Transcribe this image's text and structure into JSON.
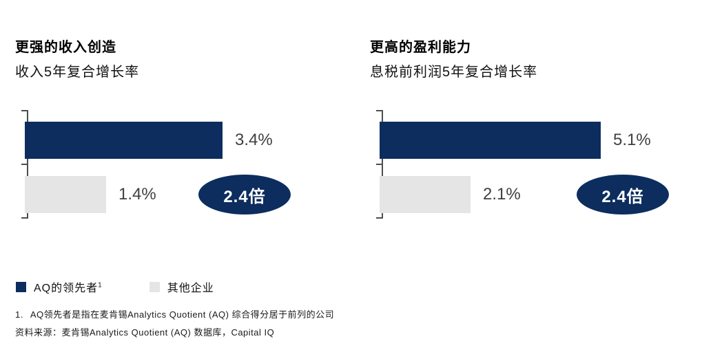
{
  "colors": {
    "navy": "#0c2d5e",
    "light_gray": "#e5e5e5",
    "value_text": "#3f3f3f",
    "axis": "#4d4d4d",
    "badge_text": "#ffffff"
  },
  "chart_data": [
    {
      "type": "bar",
      "orientation": "horizontal",
      "title": "更强的收入创造",
      "subtitle": "收入5年复合增长率",
      "categories": [
        "AQ的领先者",
        "其他企业"
      ],
      "values": [
        3.4,
        1.4
      ],
      "value_labels": [
        "3.4%",
        "1.4%"
      ],
      "unit": "%",
      "annotation": "2.4倍",
      "bar_colors": [
        "#0c2d5e",
        "#e5e5e5"
      ],
      "grid": false,
      "legend_position": "bottom-left"
    },
    {
      "type": "bar",
      "orientation": "horizontal",
      "title": "更高的盈利能力",
      "subtitle": "息税前利润5年复合增长率",
      "categories": [
        "AQ的领先者",
        "其他企业"
      ],
      "values": [
        5.1,
        2.1
      ],
      "value_labels": [
        "5.1%",
        "2.1%"
      ],
      "unit": "%",
      "annotation": "2.4倍",
      "bar_colors": [
        "#0c2d5e",
        "#e5e5e5"
      ],
      "grid": false,
      "legend_position": "bottom-left"
    }
  ],
  "legend": {
    "items": [
      {
        "label": "AQ的领先者",
        "footnote_marker": "1",
        "color": "#0c2d5e"
      },
      {
        "label": "其他企业",
        "footnote_marker": "",
        "color": "#e5e5e5"
      }
    ]
  },
  "footnote": {
    "marker": "1.",
    "text": "AQ领先者是指在麦肯锡Analytics Quotient (AQ) 综合得分居于前列的公司"
  },
  "source": "资料来源：麦肯锡Analytics Quotient (AQ) 数据库，Capital IQ"
}
